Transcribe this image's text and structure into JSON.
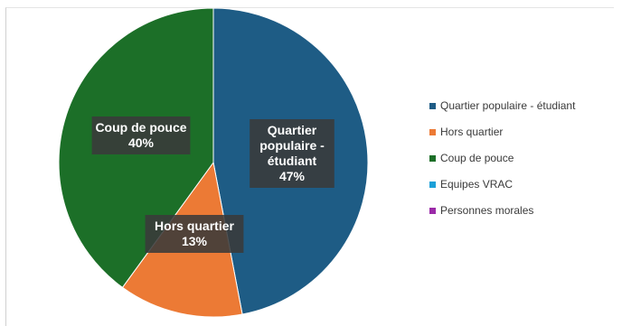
{
  "chart_data": {
    "type": "pie",
    "title": "",
    "legend_position": "right",
    "slices": [
      {
        "name": "Quartier populaire - étudiant",
        "value": 47,
        "label_lines": [
          "Quartier",
          "populaire -",
          "étudiant",
          "47%"
        ],
        "color": "#1e5c85"
      },
      {
        "name": "Hors quartier",
        "value": 13,
        "label_lines": [
          "Hors quartier",
          "13%"
        ],
        "color": "#ec7a35"
      },
      {
        "name": "Coup de pouce",
        "value": 40,
        "label_lines": [
          "Coup de pouce",
          "40%"
        ],
        "color": "#1c6f28"
      },
      {
        "name": "Equipes VRAC",
        "value": 0,
        "label_lines": [],
        "color": "#1ba0d8"
      },
      {
        "name": "Personnes morales",
        "value": 0,
        "label_lines": [],
        "color": "#9b2aa8"
      }
    ],
    "legend": [
      "Quartier populaire - étudiant",
      "Hors quartier",
      "Coup de pouce",
      "Equipes VRAC",
      "Personnes morales"
    ]
  }
}
